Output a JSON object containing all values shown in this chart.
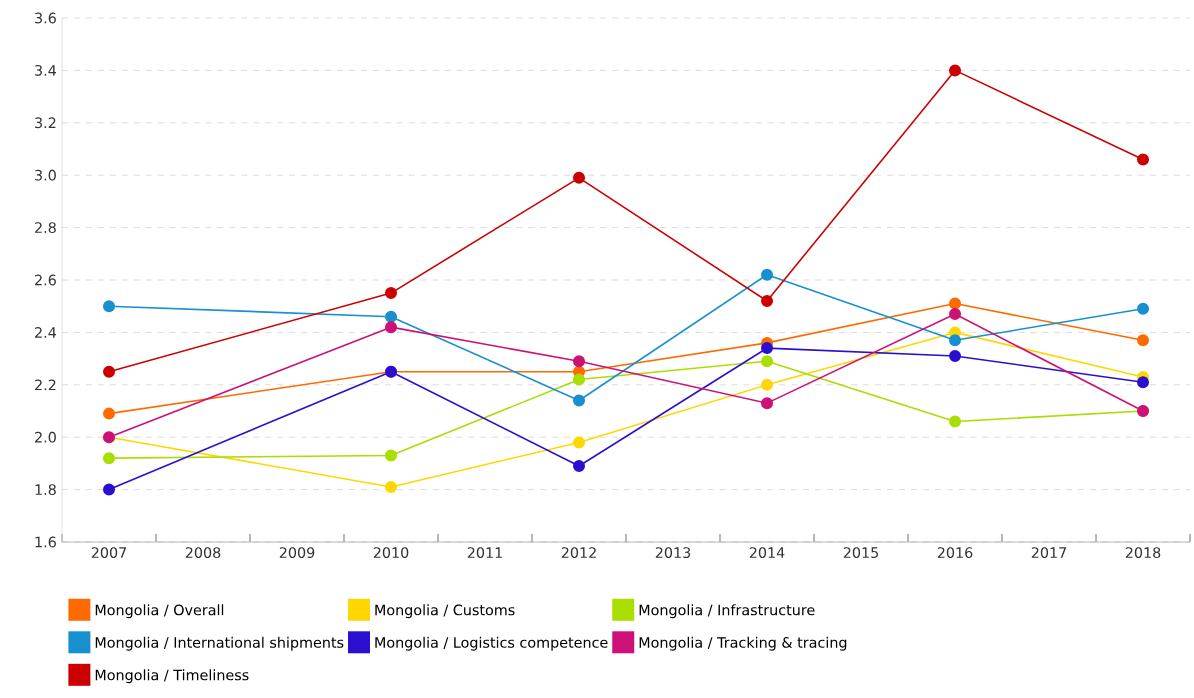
{
  "chart_data": {
    "type": "line",
    "categories": [
      "2007",
      "2008",
      "2009",
      "2010",
      "2011",
      "2012",
      "2013",
      "2014",
      "2015",
      "2016",
      "2017",
      "2018"
    ],
    "series": [
      {
        "name": "Mongolia / Overall",
        "color": "#ff6a00",
        "values": [
          2.09,
          null,
          null,
          2.25,
          null,
          2.25,
          null,
          2.36,
          null,
          2.51,
          null,
          2.37
        ]
      },
      {
        "name": "Mongolia / Customs",
        "color": "#ffd700",
        "values": [
          2.0,
          null,
          null,
          1.81,
          null,
          1.98,
          null,
          2.2,
          null,
          2.4,
          null,
          2.23
        ]
      },
      {
        "name": "Mongolia / Infrastructure",
        "color": "#aadd00",
        "values": [
          1.92,
          null,
          null,
          1.93,
          null,
          2.22,
          null,
          2.29,
          null,
          2.06,
          null,
          2.1
        ]
      },
      {
        "name": "Mongolia / International shipments",
        "color": "#1890d0",
        "values": [
          2.5,
          null,
          null,
          2.46,
          null,
          2.14,
          null,
          2.62,
          null,
          2.37,
          null,
          2.49
        ]
      },
      {
        "name": "Mongolia / Logistics competence",
        "color": "#2a0fd0",
        "values": [
          1.8,
          null,
          null,
          2.25,
          null,
          1.89,
          null,
          2.34,
          null,
          2.31,
          null,
          2.21
        ]
      },
      {
        "name": "Mongolia / Tracking & tracing",
        "color": "#cc1177",
        "values": [
          2.0,
          null,
          null,
          2.42,
          null,
          2.29,
          null,
          2.13,
          null,
          2.47,
          null,
          2.1
        ]
      },
      {
        "name": "Mongolia / Timeliness",
        "color": "#cc0000",
        "values": [
          2.25,
          null,
          null,
          2.55,
          null,
          2.99,
          null,
          2.52,
          null,
          3.4,
          null,
          3.06
        ]
      }
    ],
    "ylim": [
      1.6,
      3.6
    ],
    "yticks": [
      {
        "value": 1.6,
        "label": "1.6"
      },
      {
        "value": 1.8,
        "label": "1.8"
      },
      {
        "value": 2.0,
        "label": "2.0"
      },
      {
        "value": 2.2,
        "label": "2.2"
      },
      {
        "value": 2.4,
        "label": "2.4"
      },
      {
        "value": 2.6,
        "label": "2.6"
      },
      {
        "value": 2.8,
        "label": "2.8"
      },
      {
        "value": 3.0,
        "label": "3.0"
      },
      {
        "value": 3.2,
        "label": "3.2"
      },
      {
        "value": 3.4,
        "label": "3.4"
      },
      {
        "value": 3.6,
        "label": "3.6"
      }
    ],
    "grid": "y",
    "legend": "bottom",
    "marker": "circle",
    "line_style": "solid"
  }
}
